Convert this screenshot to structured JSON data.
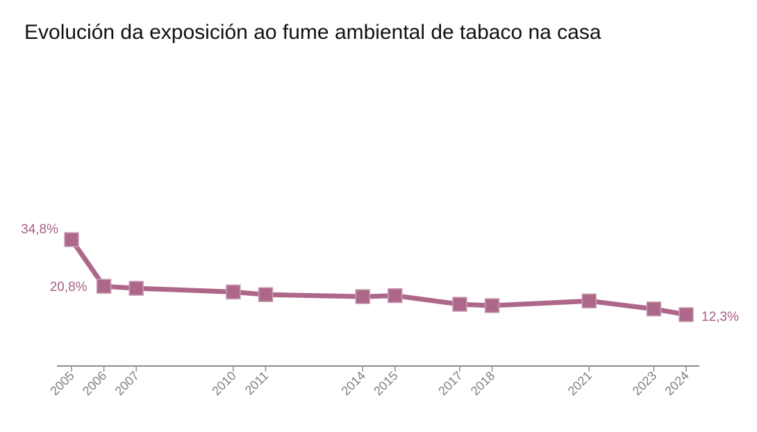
{
  "page": {
    "background_color": "#ffffff",
    "title_color": "#111111"
  },
  "chart_data": {
    "type": "line",
    "title": "Evolución da exposición ao fume ambiental de tabaco na casa",
    "xlabel": "",
    "ylabel": "",
    "y_unit": "%",
    "x_range": [
      2005,
      2024
    ],
    "grid": false,
    "legend": false,
    "x": [
      2005,
      2006,
      2007,
      2010,
      2011,
      2014,
      2015,
      2017,
      2018,
      2021,
      2023,
      2024
    ],
    "values": [
      34.8,
      20.8,
      20.2,
      19.1,
      18.3,
      17.7,
      18.0,
      15.4,
      15.0,
      16.4,
      14.0,
      12.3
    ],
    "x_tick_labels": [
      "2005",
      "2006",
      "2007",
      "2010",
      "2011",
      "2014",
      "2015",
      "2017",
      "2018",
      "2021",
      "2023",
      "2024"
    ],
    "value_labels_visible": [
      {
        "x": 2005,
        "label": "34,8%"
      },
      {
        "x": 2006,
        "label": "20,8%"
      },
      {
        "x": 2024,
        "label": "12,3%"
      }
    ],
    "series_color": "#ad6889",
    "marker": {
      "shape": "square",
      "color": "#ad6889",
      "border_color": "#c99fb4"
    },
    "label_color": "#a75f84",
    "axis_color": "#8c8c8c",
    "tick_label_color": "#808080"
  }
}
